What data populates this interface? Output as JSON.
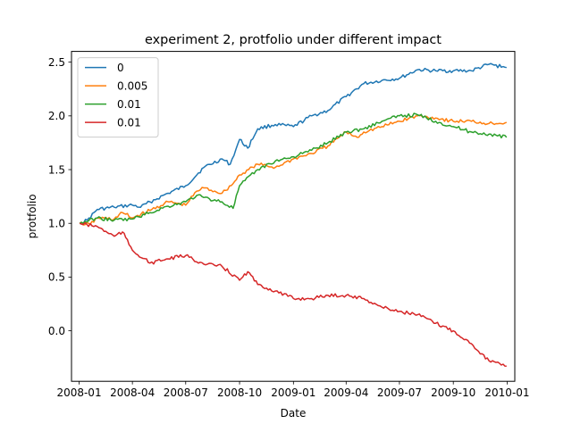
{
  "chart_data": {
    "type": "line",
    "title": "experiment 2, protfolio under different impact",
    "xlabel": "Date",
    "ylabel": "protfolio",
    "x_ticks": [
      "2008-01",
      "2008-04",
      "2008-07",
      "2008-10",
      "2009-01",
      "2009-04",
      "2009-07",
      "2009-10",
      "2010-01"
    ],
    "y_ticks": [
      "0.0",
      "0.5",
      "1.0",
      "1.5",
      "2.0",
      "2.5"
    ],
    "xlim": [
      "2007-12-19",
      "2010-01-14"
    ],
    "ylim": [
      -0.47,
      2.6
    ],
    "grid": false,
    "legend_position": "top-left",
    "series": [
      {
        "name": "0",
        "color": "#1f77b4",
        "points": [
          [
            "2008-01-02",
            1.0
          ],
          [
            "2008-01-15",
            1.03
          ],
          [
            "2008-02-01",
            1.13
          ],
          [
            "2008-03-01",
            1.15
          ],
          [
            "2008-04-01",
            1.17
          ],
          [
            "2008-04-15",
            1.15
          ],
          [
            "2008-05-01",
            1.2
          ],
          [
            "2008-06-01",
            1.28
          ],
          [
            "2008-07-01",
            1.35
          ],
          [
            "2008-08-01",
            1.52
          ],
          [
            "2008-09-01",
            1.6
          ],
          [
            "2008-09-15",
            1.55
          ],
          [
            "2008-10-01",
            1.78
          ],
          [
            "2008-10-15",
            1.7
          ],
          [
            "2008-11-01",
            1.88
          ],
          [
            "2008-12-01",
            1.92
          ],
          [
            "2009-01-01",
            1.9
          ],
          [
            "2009-02-01",
            2.0
          ],
          [
            "2009-03-01",
            2.05
          ],
          [
            "2009-04-01",
            2.18
          ],
          [
            "2009-05-01",
            2.3
          ],
          [
            "2009-06-01",
            2.33
          ],
          [
            "2009-07-01",
            2.35
          ],
          [
            "2009-08-01",
            2.43
          ],
          [
            "2009-09-01",
            2.42
          ],
          [
            "2009-10-01",
            2.42
          ],
          [
            "2009-11-01",
            2.42
          ],
          [
            "2009-12-01",
            2.48
          ],
          [
            "2009-12-31",
            2.45
          ]
        ]
      },
      {
        "name": "0.005",
        "color": "#ff7f0e",
        "points": [
          [
            "2008-01-02",
            1.0
          ],
          [
            "2008-01-20",
            0.99
          ],
          [
            "2008-02-01",
            1.05
          ],
          [
            "2008-03-01",
            1.04
          ],
          [
            "2008-03-15",
            1.1
          ],
          [
            "2008-04-01",
            1.05
          ],
          [
            "2008-05-01",
            1.12
          ],
          [
            "2008-06-01",
            1.2
          ],
          [
            "2008-07-01",
            1.17
          ],
          [
            "2008-07-20",
            1.3
          ],
          [
            "2008-08-01",
            1.33
          ],
          [
            "2008-09-01",
            1.28
          ],
          [
            "2008-09-20",
            1.37
          ],
          [
            "2008-10-01",
            1.45
          ],
          [
            "2008-11-01",
            1.55
          ],
          [
            "2008-12-01",
            1.52
          ],
          [
            "2009-01-01",
            1.6
          ],
          [
            "2009-02-01",
            1.65
          ],
          [
            "2009-03-01",
            1.72
          ],
          [
            "2009-04-01",
            1.85
          ],
          [
            "2009-04-20",
            1.8
          ],
          [
            "2009-05-01",
            1.85
          ],
          [
            "2009-06-01",
            1.9
          ],
          [
            "2009-07-01",
            1.95
          ],
          [
            "2009-08-01",
            2.0
          ],
          [
            "2009-09-01",
            1.98
          ],
          [
            "2009-10-01",
            1.95
          ],
          [
            "2009-11-01",
            1.95
          ],
          [
            "2009-12-01",
            1.93
          ],
          [
            "2009-12-31",
            1.94
          ]
        ]
      },
      {
        "name": "0.01",
        "color": "#2ca02c",
        "points": [
          [
            "2008-01-02",
            1.0
          ],
          [
            "2008-02-01",
            1.05
          ],
          [
            "2008-03-01",
            1.03
          ],
          [
            "2008-04-01",
            1.04
          ],
          [
            "2008-05-01",
            1.1
          ],
          [
            "2008-06-01",
            1.16
          ],
          [
            "2008-07-01",
            1.2
          ],
          [
            "2008-07-20",
            1.26
          ],
          [
            "2008-08-01",
            1.24
          ],
          [
            "2008-09-01",
            1.2
          ],
          [
            "2008-09-20",
            1.14
          ],
          [
            "2008-10-01",
            1.35
          ],
          [
            "2008-11-01",
            1.5
          ],
          [
            "2008-12-01",
            1.58
          ],
          [
            "2009-01-01",
            1.62
          ],
          [
            "2009-02-01",
            1.68
          ],
          [
            "2009-03-01",
            1.75
          ],
          [
            "2009-04-01",
            1.85
          ],
          [
            "2009-05-01",
            1.88
          ],
          [
            "2009-06-01",
            1.95
          ],
          [
            "2009-07-01",
            2.0
          ],
          [
            "2009-08-01",
            2.01
          ],
          [
            "2009-09-01",
            1.95
          ],
          [
            "2009-10-01",
            1.9
          ],
          [
            "2009-11-01",
            1.85
          ],
          [
            "2009-12-01",
            1.83
          ],
          [
            "2009-12-31",
            1.8
          ]
        ]
      },
      {
        "name": "0.01",
        "color": "#d62728",
        "points": [
          [
            "2008-01-02",
            1.0
          ],
          [
            "2008-02-01",
            0.97
          ],
          [
            "2008-03-01",
            0.88
          ],
          [
            "2008-03-15",
            0.92
          ],
          [
            "2008-04-01",
            0.75
          ],
          [
            "2008-05-01",
            0.63
          ],
          [
            "2008-06-01",
            0.67
          ],
          [
            "2008-07-01",
            0.7
          ],
          [
            "2008-08-01",
            0.62
          ],
          [
            "2008-09-01",
            0.6
          ],
          [
            "2008-10-01",
            0.47
          ],
          [
            "2008-10-15",
            0.55
          ],
          [
            "2008-11-01",
            0.43
          ],
          [
            "2008-12-01",
            0.37
          ],
          [
            "2009-01-01",
            0.3
          ],
          [
            "2009-02-01",
            0.3
          ],
          [
            "2009-03-01",
            0.33
          ],
          [
            "2009-04-01",
            0.33
          ],
          [
            "2009-05-01",
            0.3
          ],
          [
            "2009-06-01",
            0.22
          ],
          [
            "2009-07-01",
            0.18
          ],
          [
            "2009-08-01",
            0.15
          ],
          [
            "2009-09-01",
            0.07
          ],
          [
            "2009-10-01",
            0.0
          ],
          [
            "2009-11-01",
            -0.12
          ],
          [
            "2009-12-01",
            -0.28
          ],
          [
            "2009-12-31",
            -0.33
          ]
        ]
      }
    ]
  }
}
